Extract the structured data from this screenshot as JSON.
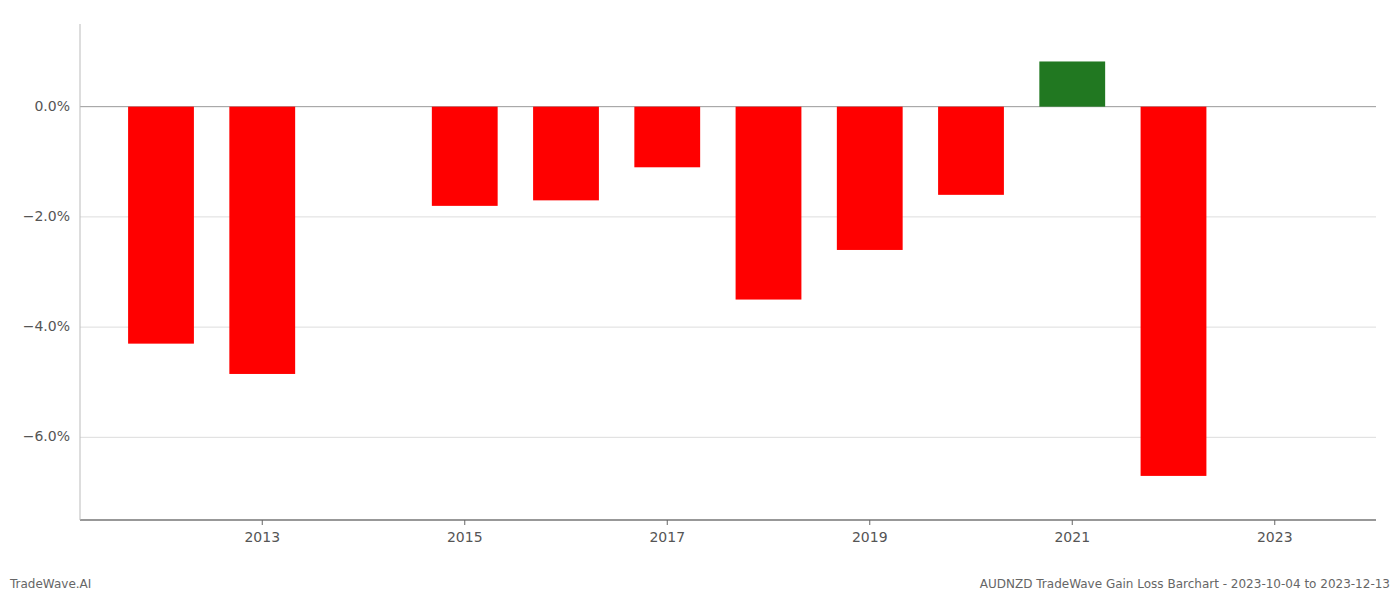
{
  "chart_data": {
    "type": "bar",
    "x": [
      2012,
      2013,
      2015,
      2016,
      2017,
      2018,
      2019,
      2020,
      2021,
      2022
    ],
    "values": [
      -4.3,
      -4.85,
      -1.8,
      -1.7,
      -1.1,
      -3.5,
      -2.6,
      -1.6,
      0.82,
      -6.7
    ],
    "colors": [
      "#ff0000",
      "#ff0000",
      "#ff0000",
      "#ff0000",
      "#ff0000",
      "#ff0000",
      "#ff0000",
      "#ff0000",
      "#217821",
      "#ff0000"
    ],
    "xlim": [
      2011.2,
      2024.0
    ],
    "xticks": [
      2013,
      2015,
      2017,
      2019,
      2021,
      2023
    ],
    "ylim": [
      -7.5,
      1.5
    ],
    "yticks": [
      {
        "value": 0.0,
        "label": "0.0%"
      },
      {
        "value": -2.0,
        "label": "−2.0%"
      },
      {
        "value": -4.0,
        "label": "−4.0%"
      },
      {
        "value": -6.0,
        "label": "−6.0%"
      }
    ],
    "grid": true,
    "annotations": [
      "TradeWave.AI",
      "AUDNZD TradeWave Gain Loss Barchart - 2023-10-04 to 2023-12-13"
    ]
  }
}
